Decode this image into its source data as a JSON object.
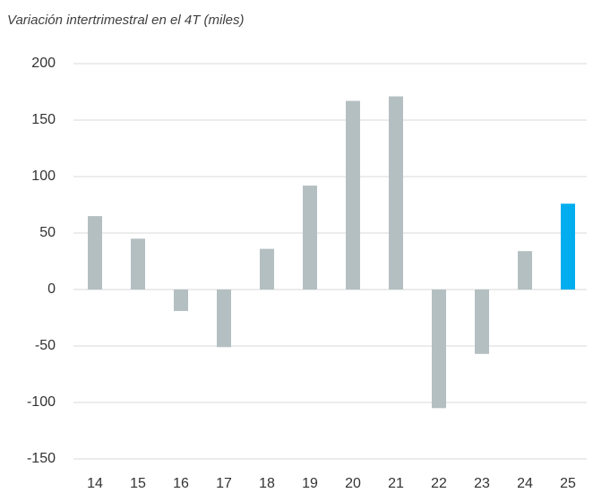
{
  "chart_data": {
    "type": "bar",
    "title": "Variación intertrimestral en el 4T (miles)",
    "categories": [
      "14",
      "15",
      "16",
      "17",
      "18",
      "19",
      "20",
      "21",
      "22",
      "23",
      "24",
      "25"
    ],
    "values": [
      65,
      45,
      -19,
      -51,
      36,
      92,
      167,
      171,
      -105,
      -57,
      34,
      76
    ],
    "colors": [
      "#b4bfc1",
      "#b4bfc1",
      "#b4bfc1",
      "#b4bfc1",
      "#b4bfc1",
      "#b4bfc1",
      "#b4bfc1",
      "#b4bfc1",
      "#b4bfc1",
      "#b4bfc1",
      "#b4bfc1",
      "#00aeef"
    ],
    "ylim": [
      -150,
      200
    ],
    "yticks": [
      -150,
      -100,
      -50,
      0,
      50,
      100,
      150,
      200
    ],
    "grid": true
  }
}
